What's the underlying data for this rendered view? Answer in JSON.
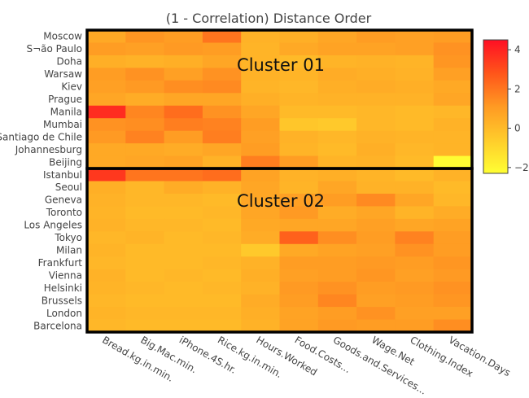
{
  "chart_data": {
    "type": "heatmap",
    "title": "(1 - Correlation) Distance Order",
    "x_categories": [
      "Bread.kg.in.min.",
      "Big.Mac.min.",
      "iPhone.4S.hr.",
      "Rice.kg.in.min.",
      "Hours.Worked",
      "Food.Costs...",
      "Goods.and.Services...",
      "Wage.Net",
      "Clothing.Index",
      "Vacation.Days"
    ],
    "y_categories": [
      "Moscow",
      "S¬ão Paulo",
      "Doha",
      "Warsaw",
      "Kiev",
      "Prague",
      "Manila",
      "Mumbai",
      "Santiago de Chile",
      "Johannesburg",
      "Beijing",
      "Istanbul",
      "Seoul",
      "Geneva",
      "Toronto",
      "Los Angeles",
      "Tokyo",
      "Milan",
      "Frankfurt",
      "Vienna",
      "Helsinki",
      "Brussels",
      "London",
      "Barcelona"
    ],
    "zlim": [
      -2.3,
      4.5
    ],
    "colorbar_ticks": [
      4,
      2,
      0,
      -2
    ],
    "colorscale": [
      "#ffff33",
      "#ffcc2b",
      "#ff9a23",
      "#ff551a",
      "#ff0f24"
    ],
    "z": [
      [
        0.6,
        1.2,
        1.0,
        2.0,
        0.3,
        0.4,
        0.7,
        1.0,
        0.9,
        1.0
      ],
      [
        1.0,
        0.9,
        1.1,
        1.0,
        0.2,
        0.6,
        0.8,
        0.8,
        0.9,
        1.3
      ],
      [
        0.4,
        0.3,
        0.4,
        0.7,
        0.2,
        0.0,
        0.2,
        0.3,
        0.2,
        1.2
      ],
      [
        1.0,
        1.3,
        0.9,
        1.3,
        0.3,
        0.2,
        0.5,
        0.4,
        0.3,
        0.9
      ],
      [
        0.9,
        1.1,
        1.4,
        1.5,
        0.2,
        0.1,
        0.4,
        0.5,
        0.4,
        0.6
      ],
      [
        0.7,
        0.5,
        0.7,
        0.7,
        0.4,
        0.2,
        0.3,
        0.3,
        0.3,
        0.7
      ],
      [
        3.8,
        1.6,
        2.2,
        1.3,
        0.7,
        0.0,
        0.0,
        0.1,
        0.0,
        0.1
      ],
      [
        1.3,
        1.4,
        1.8,
        1.7,
        1.0,
        -0.4,
        -0.5,
        0.1,
        0.0,
        0.3
      ],
      [
        1.1,
        1.7,
        1.0,
        1.8,
        0.9,
        0.3,
        0.1,
        0.3,
        0.2,
        0.2
      ],
      [
        0.6,
        0.6,
        0.5,
        0.7,
        1.0,
        0.2,
        0.0,
        0.4,
        0.1,
        0.2
      ],
      [
        0.6,
        0.7,
        0.8,
        0.3,
        1.8,
        1.0,
        0.2,
        0.3,
        0.0,
        -2.2
      ],
      [
        3.5,
        2.0,
        2.0,
        2.2,
        0.8,
        0.3,
        0.4,
        0.2,
        0.0,
        0.3
      ],
      [
        0.4,
        0.1,
        0.5,
        0.3,
        0.7,
        0.2,
        0.7,
        0.3,
        0.3,
        0.0
      ],
      [
        0.3,
        0.1,
        0.1,
        0.0,
        0.7,
        0.9,
        1.0,
        1.5,
        0.7,
        0.1
      ],
      [
        0.2,
        0.0,
        0.0,
        0.1,
        0.7,
        1.1,
        0.5,
        0.7,
        0.2,
        0.5
      ],
      [
        0.3,
        0.1,
        0.1,
        0.0,
        0.6,
        0.7,
        0.7,
        0.9,
        0.7,
        0.8
      ],
      [
        0.1,
        0.2,
        0.0,
        0.1,
        0.5,
        2.5,
        1.4,
        1.0,
        1.7,
        1.0
      ],
      [
        0.2,
        0.0,
        0.0,
        0.0,
        -0.5,
        0.6,
        0.8,
        0.9,
        1.3,
        1.0
      ],
      [
        0.1,
        0.0,
        0.0,
        0.1,
        0.3,
        1.0,
        1.0,
        1.1,
        1.0,
        1.2
      ],
      [
        0.3,
        0.0,
        0.1,
        0.0,
        0.4,
        0.9,
        1.0,
        1.2,
        0.9,
        1.1
      ],
      [
        0.2,
        0.1,
        0.0,
        0.1,
        0.3,
        1.1,
        1.3,
        1.0,
        1.1,
        1.3
      ],
      [
        0.1,
        0.0,
        0.0,
        0.0,
        0.5,
        1.0,
        1.6,
        0.9,
        1.0,
        1.2
      ],
      [
        0.2,
        0.1,
        0.1,
        0.1,
        0.4,
        0.8,
        1.0,
        1.3,
        0.9,
        0.9
      ],
      [
        0.1,
        0.0,
        0.0,
        0.0,
        0.3,
        0.8,
        1.1,
        1.0,
        1.0,
        1.4
      ]
    ],
    "clusters": [
      {
        "label": "Cluster 01",
        "rows": [
          0,
          10
        ]
      },
      {
        "label": "Cluster 02",
        "rows": [
          11,
          23
        ]
      }
    ]
  }
}
